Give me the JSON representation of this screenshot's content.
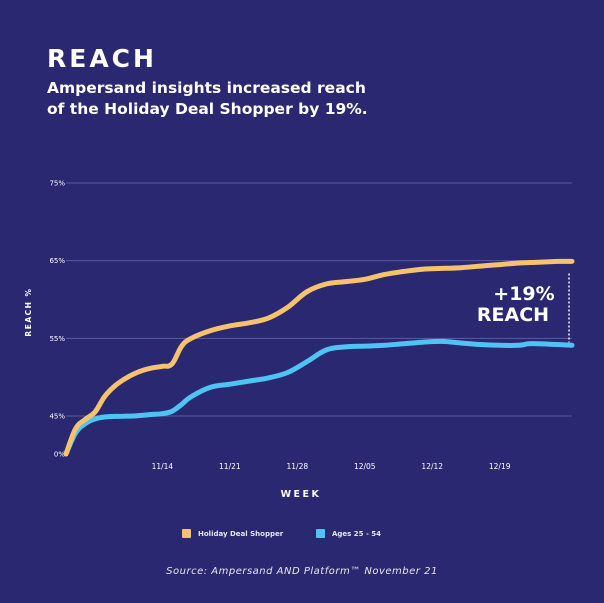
{
  "header": {
    "title": "REACH",
    "subtitle_line1": "Ampersand insights increased reach",
    "subtitle_line2": "of the Holiday Deal Shopper by 19%."
  },
  "annotation": {
    "line1": "+19%",
    "line2": "REACH"
  },
  "source": "Source: Ampersand AND Platform™ November 21",
  "colors": {
    "background": "#2a2870",
    "grid": "#5d5b9e",
    "holiday": "#f6c26e",
    "ages": "#4fc3f2",
    "text": "#ffffff"
  },
  "chart_data": {
    "type": "line",
    "xlabel": "WEEK",
    "ylabel": "REACH %",
    "y_ticks": [
      {
        "value": 0,
        "label": "0%"
      },
      {
        "value": 45,
        "label": "45%"
      },
      {
        "value": 55,
        "label": "55%"
      },
      {
        "value": 65,
        "label": "65%"
      },
      {
        "value": 75,
        "label": "75%"
      }
    ],
    "x_ticks": [
      {
        "value": 10,
        "label": "11/14"
      },
      {
        "value": 17,
        "label": "11/21"
      },
      {
        "value": 24,
        "label": "11/28"
      },
      {
        "value": 31,
        "label": "12/05"
      },
      {
        "value": 38,
        "label": "12/12"
      },
      {
        "value": 45,
        "label": "12/19"
      }
    ],
    "x_range": [
      0,
      52.5
    ],
    "grid": true,
    "legend_position": "bottom",
    "series": [
      {
        "name": "Holiday Deal Shopper",
        "color": "#f6c26e",
        "x": [
          0,
          1,
          2,
          3,
          4,
          5,
          6,
          7,
          8,
          9,
          10,
          11,
          12,
          13,
          15,
          17,
          19,
          21,
          23,
          25,
          27,
          29,
          31,
          33,
          35,
          37,
          39,
          41,
          43,
          45,
          47,
          49,
          51,
          52.5
        ],
        "y": [
          0,
          30,
          41,
          45.5,
          47.5,
          48.8,
          49.7,
          50.4,
          50.9,
          51.2,
          51.4,
          51.7,
          54.0,
          55.0,
          56.0,
          56.6,
          57.0,
          57.6,
          59.0,
          61.0,
          62.0,
          62.3,
          62.6,
          63.2,
          63.6,
          63.9,
          64.0,
          64.1,
          64.3,
          64.5,
          64.7,
          64.8,
          64.9,
          64.9
        ]
      },
      {
        "name": "Ages 25 - 54",
        "color": "#4fc3f2",
        "x": [
          0,
          1,
          2,
          3,
          4,
          5,
          6,
          7,
          8,
          9,
          10,
          11,
          12,
          13,
          15,
          17,
          19,
          21,
          23,
          25,
          27,
          29,
          31,
          33,
          35,
          37,
          39,
          41,
          43,
          45,
          47,
          48,
          49,
          51,
          52.5
        ],
        "y": [
          0,
          25,
          36,
          41.5,
          43.8,
          44.5,
          44.8,
          45.0,
          45.1,
          45.2,
          45.3,
          45.6,
          46.5,
          47.5,
          48.7,
          49.1,
          49.5,
          49.9,
          50.6,
          52.0,
          53.5,
          53.9,
          54.0,
          54.1,
          54.3,
          54.5,
          54.6,
          54.4,
          54.2,
          54.1,
          54.1,
          54.3,
          54.3,
          54.2,
          54.1
        ]
      }
    ]
  }
}
